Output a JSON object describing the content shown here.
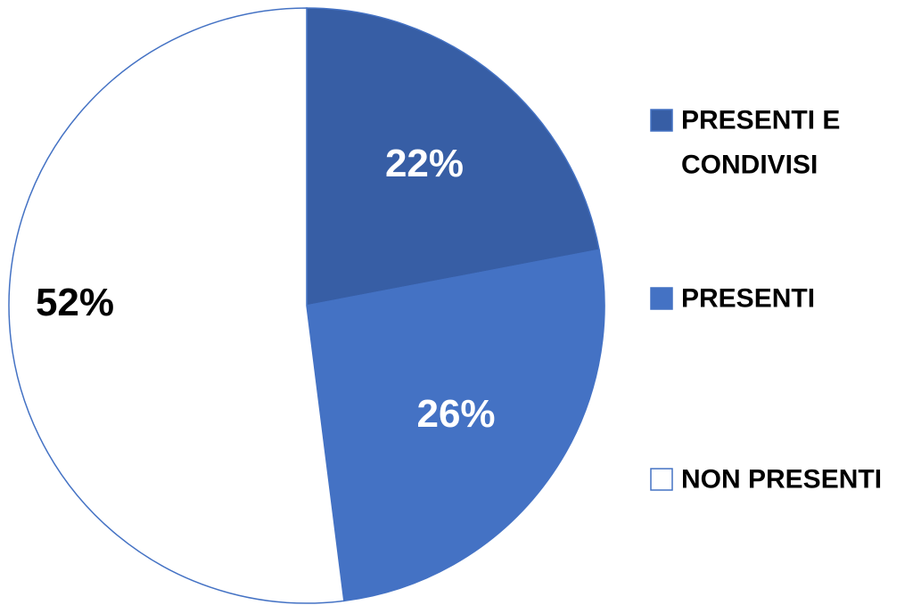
{
  "chart_data": {
    "type": "pie",
    "title": "",
    "legend_position": "right",
    "start_angle_deg": 0,
    "direction": "clockwise",
    "slices": [
      {
        "label_lines": [
          "PRESENTI E",
          "CONDIVISI"
        ],
        "value": 22,
        "display": "22%",
        "color": "#375EA5",
        "label_color": "#FFFFFF"
      },
      {
        "label_lines": [
          "PRESENTI"
        ],
        "value": 26,
        "display": "26%",
        "color": "#4472C4",
        "label_color": "#FFFFFF"
      },
      {
        "label_lines": [
          "NON PRESENTI"
        ],
        "value": 52,
        "display": "52%",
        "color": "#FFFFFF",
        "label_color": "#000000"
      }
    ],
    "outline_color": "#4472C4"
  }
}
